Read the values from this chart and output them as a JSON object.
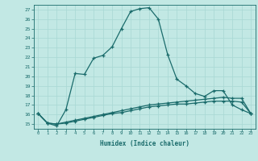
{
  "xlabel": "Humidex (Indice chaleur)",
  "background_color": "#c2e8e4",
  "line_color": "#1a6b6b",
  "grid_color": "#a8d8d4",
  "xlim": [
    -0.5,
    23.5
  ],
  "ylim": [
    14.5,
    27.5
  ],
  "xticks": [
    0,
    1,
    2,
    3,
    4,
    5,
    6,
    7,
    8,
    9,
    10,
    11,
    12,
    13,
    14,
    15,
    16,
    17,
    18,
    19,
    20,
    21,
    22,
    23
  ],
  "yticks": [
    15,
    16,
    17,
    18,
    19,
    20,
    21,
    22,
    23,
    24,
    25,
    26,
    27
  ],
  "series1_x": [
    0,
    1,
    2,
    3,
    4,
    5,
    6,
    7,
    8,
    9,
    10,
    11,
    12,
    13,
    14,
    15,
    16,
    17,
    18,
    19,
    20,
    21,
    22,
    23
  ],
  "series1_y": [
    16.1,
    15.1,
    14.8,
    16.5,
    20.3,
    20.2,
    21.9,
    22.2,
    23.1,
    25.0,
    26.8,
    27.1,
    27.2,
    26.0,
    22.3,
    19.7,
    19.0,
    18.2,
    17.9,
    18.5,
    18.5,
    17.0,
    16.5,
    16.1
  ],
  "series2_x": [
    0,
    1,
    2,
    3,
    4,
    5,
    6,
    7,
    8,
    9,
    10,
    11,
    12,
    13,
    14,
    15,
    16,
    17,
    18,
    19,
    20,
    21,
    22,
    23
  ],
  "series2_y": [
    16.1,
    15.1,
    15.0,
    15.2,
    15.4,
    15.6,
    15.8,
    16.0,
    16.2,
    16.4,
    16.6,
    16.8,
    17.0,
    17.1,
    17.2,
    17.3,
    17.4,
    17.5,
    17.6,
    17.7,
    17.8,
    17.7,
    17.7,
    16.1
  ],
  "series3_x": [
    0,
    1,
    2,
    3,
    4,
    5,
    6,
    7,
    8,
    9,
    10,
    11,
    12,
    13,
    14,
    15,
    16,
    17,
    18,
    19,
    20,
    21,
    22,
    23
  ],
  "series3_y": [
    16.1,
    15.1,
    15.0,
    15.1,
    15.3,
    15.5,
    15.7,
    15.9,
    16.1,
    16.2,
    16.4,
    16.6,
    16.8,
    16.9,
    17.0,
    17.1,
    17.1,
    17.2,
    17.3,
    17.4,
    17.4,
    17.4,
    17.3,
    16.1
  ]
}
